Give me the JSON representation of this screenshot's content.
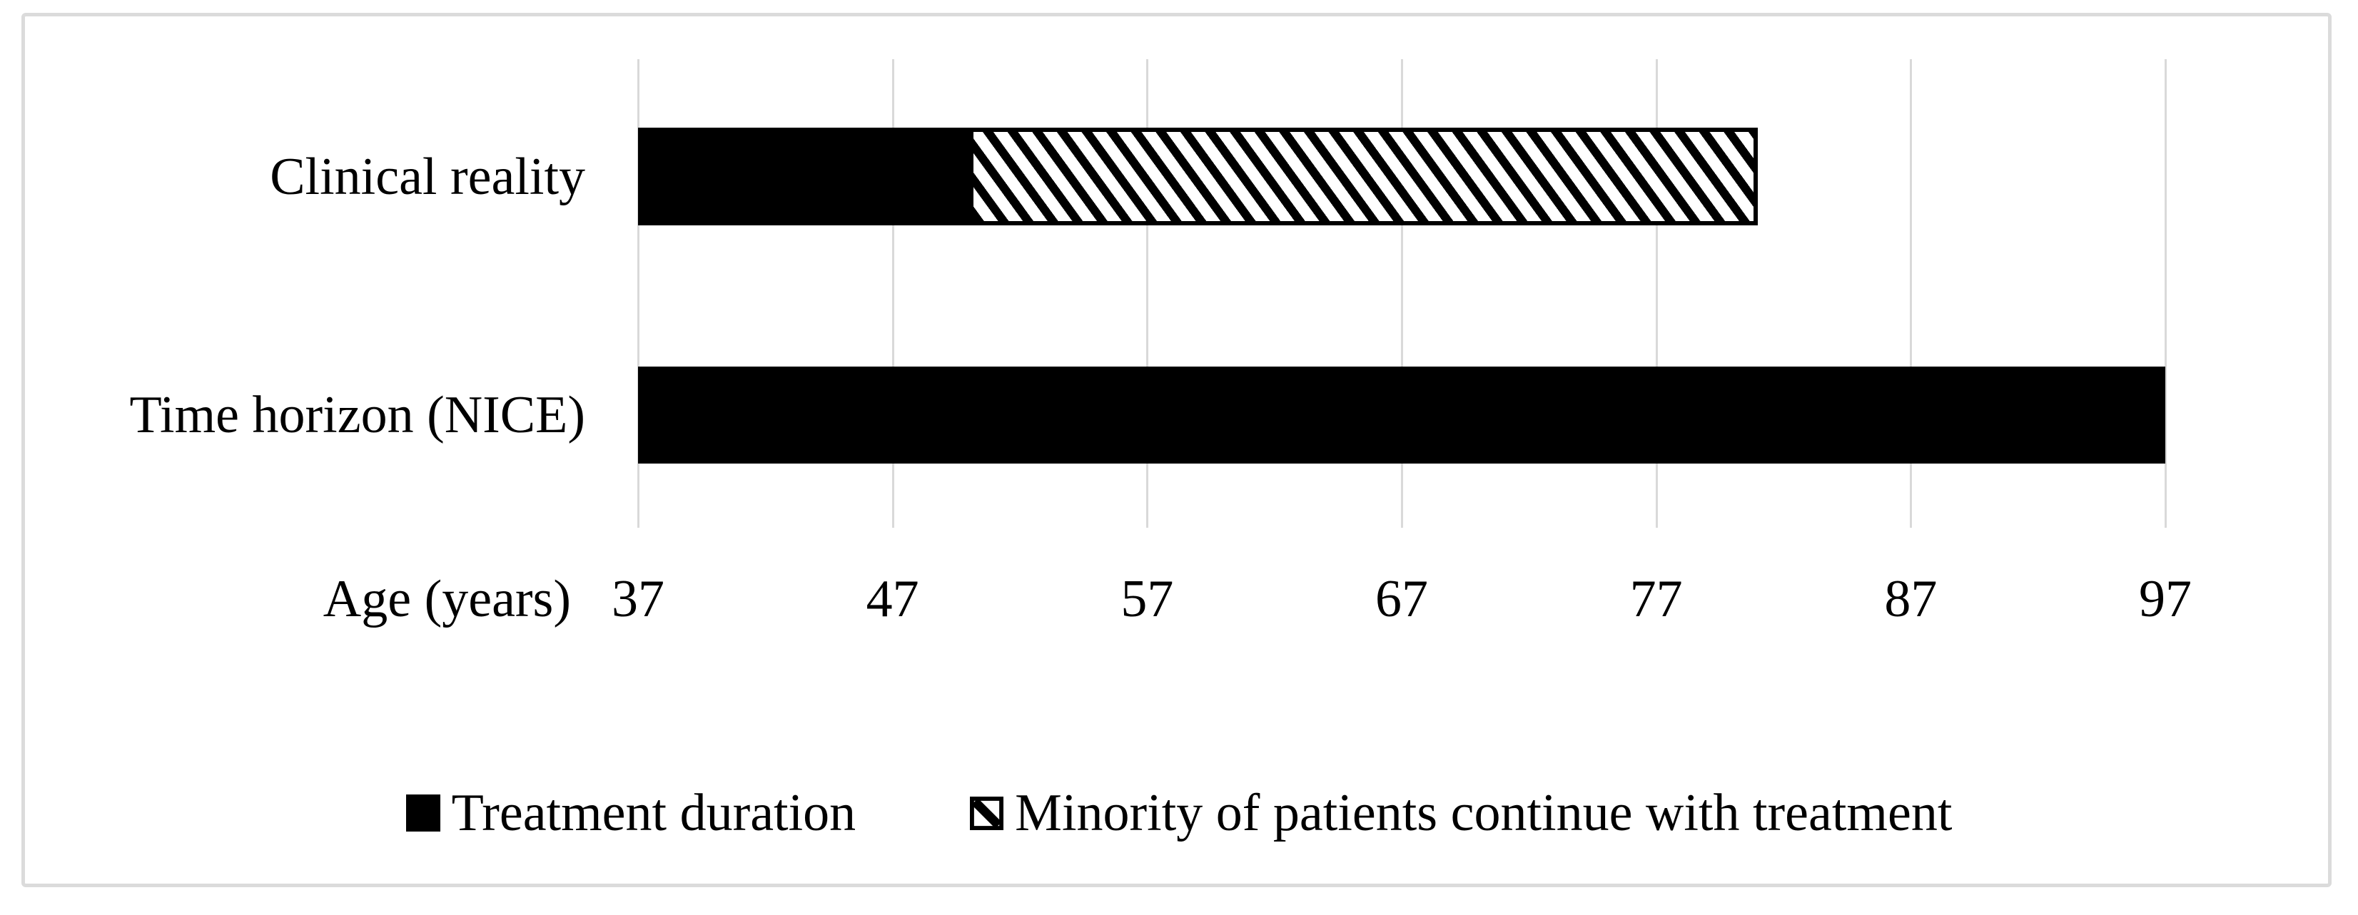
{
  "figure": {
    "background": "#ffffff",
    "frame_border_color": "#dbdbdb"
  },
  "chart_data": {
    "type": "bar",
    "orientation": "horizontal",
    "stacked": true,
    "title": "",
    "categories": [
      "Clinical reality",
      "Time horizon (NICE)"
    ],
    "x_base": 37,
    "series": [
      {
        "name": "Treatment duration",
        "pattern": "solid-black",
        "values": [
          13,
          60
        ],
        "spans": [
          {
            "category": "Clinical reality",
            "from": 37,
            "to": 50
          },
          {
            "category": "Time horizon (NICE)",
            "from": 37,
            "to": 97
          }
        ]
      },
      {
        "name": "Minority of patients continue with treatment",
        "pattern": "diagonal-hatch",
        "values": [
          31,
          0
        ],
        "spans": [
          {
            "category": "Clinical reality",
            "from": 50,
            "to": 81
          }
        ]
      }
    ],
    "xlabel": "Age (years)",
    "ylabel": "",
    "x_ticks": [
      37,
      47,
      57,
      67,
      77,
      87,
      97
    ],
    "xlim": [
      37,
      97
    ],
    "grid": "vertical-gridlines-only",
    "legend_position": "bottom-center",
    "colors": {
      "bar": "#000000",
      "gridline": "#d9d9d9",
      "text": "#000000",
      "background": "#ffffff"
    }
  },
  "axis": {
    "label": "Age (years)"
  },
  "legend": {
    "items": [
      {
        "label": "Treatment duration",
        "marker": "solid-black-square"
      },
      {
        "label": "Minority of patients continue with treatment",
        "marker": "diagonal-hatch-square"
      }
    ]
  }
}
